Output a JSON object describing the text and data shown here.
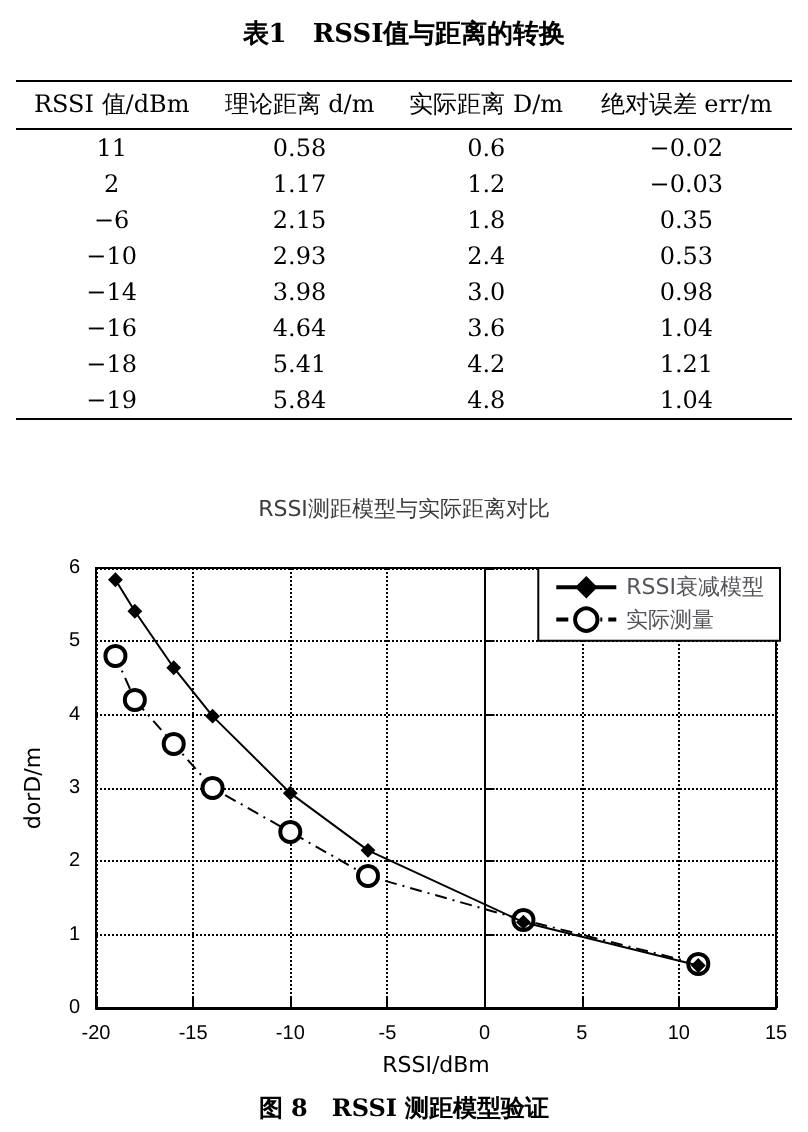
{
  "chart_data": [
    {
      "type": "other",
      "title": "表1　RSSI值与距离的转换",
      "annotations": [
        "RSSI 值/dBm",
        "理论距离 d/m",
        "实际距离 D/m",
        "绝对误差 err/m",
        "11",
        "0.58",
        "0.6",
        "−0.02",
        "2",
        "1.17",
        "1.2",
        "−0.03",
        "−6",
        "2.15",
        "1.8",
        "0.35",
        "−10",
        "2.93",
        "2.4",
        "0.53",
        "−14",
        "3.98",
        "3.0",
        "0.98",
        "−16",
        "4.64",
        "3.6",
        "1.04",
        "−18",
        "5.41",
        "4.2",
        "1.21",
        "−19",
        "5.84",
        "4.8",
        "1.04"
      ]
    },
    {
      "type": "line",
      "title": "RSSI测距模型与实际距离对比",
      "xlabel": "RSSI/dBm",
      "ylabel": "dorD/m",
      "x": [
        11,
        2,
        -6,
        -10,
        -14,
        -16,
        -18,
        -19
      ],
      "series": [
        {
          "name": "RSSI衰减模型",
          "color": "#000000",
          "marker": "diamond",
          "line_style": "solid",
          "values": [
            0.58,
            1.17,
            2.15,
            2.93,
            3.98,
            4.64,
            5.41,
            5.84
          ]
        },
        {
          "name": "实际测量",
          "color": "#000000",
          "marker": "circle",
          "line_style": "dashed",
          "values": [
            0.6,
            1.2,
            1.8,
            2.4,
            3.0,
            3.6,
            4.2,
            4.8
          ]
        }
      ],
      "xlim": [
        -20,
        15
      ],
      "xticks": [
        -20,
        -15,
        -10,
        -5,
        0,
        5,
        10,
        15
      ],
      "ylim": [
        0,
        6
      ],
      "yticks": [
        0,
        1,
        2,
        3,
        4,
        5,
        6
      ],
      "grid": true,
      "legend": "top right",
      "annotations": [
        "图 8　RSSI 测距模型验证"
      ]
    }
  ]
}
